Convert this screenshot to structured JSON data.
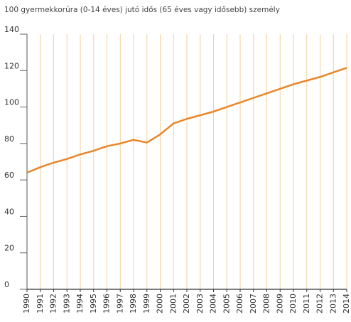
{
  "chart_data": {
    "type": "line",
    "title": "100  gyermekkorúra (0-14 éves) jutó idős (65 éves vagy idősebb) személy",
    "categories": [
      "1990",
      "1991",
      "1992",
      "1993",
      "1994",
      "1995",
      "1996",
      "1997",
      "1998",
      "1999",
      "2000",
      "2001",
      "2002",
      "2003",
      "2004",
      "2005",
      "2006",
      "2007",
      "2008",
      "2009",
      "2010",
      "2011",
      "2012",
      "2013",
      "2014"
    ],
    "values": [
      64,
      67,
      69.5,
      71.5,
      74,
      76,
      78.5,
      80,
      82,
      80.5,
      85,
      91,
      93.5,
      95.5,
      97.5,
      100,
      102.5,
      105,
      107.5,
      110,
      112.5,
      114.5,
      116.5,
      119,
      121.5
    ],
    "color": "#e8862a",
    "grid_color": "#f6cf9c",
    "ylim": [
      0,
      140
    ],
    "yticks": [
      0,
      20,
      40,
      60,
      80,
      100,
      120,
      140
    ],
    "grid": true
  }
}
